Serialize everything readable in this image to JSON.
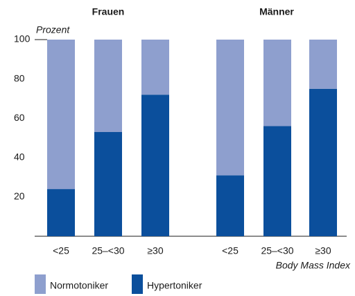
{
  "chart_data": {
    "type": "bar",
    "stacked": true,
    "groups": [
      "Frauen",
      "Männer"
    ],
    "categories": [
      "<25",
      "25–<30",
      "≥30",
      "<25",
      "25–<30",
      "≥30"
    ],
    "series": [
      {
        "name": "Hypertoniker",
        "color": "#0b4f9c",
        "values": [
          24,
          53,
          72,
          31,
          56,
          75
        ]
      },
      {
        "name": "Normotoniker",
        "color": "#8e9fce",
        "values": [
          76,
          47,
          28,
          69,
          44,
          25
        ]
      }
    ],
    "ylabel": "Prozent",
    "xlabel": "Body Mass Index",
    "ylim": [
      0,
      100
    ],
    "yticks": [
      20,
      40,
      60,
      80,
      100
    ]
  }
}
